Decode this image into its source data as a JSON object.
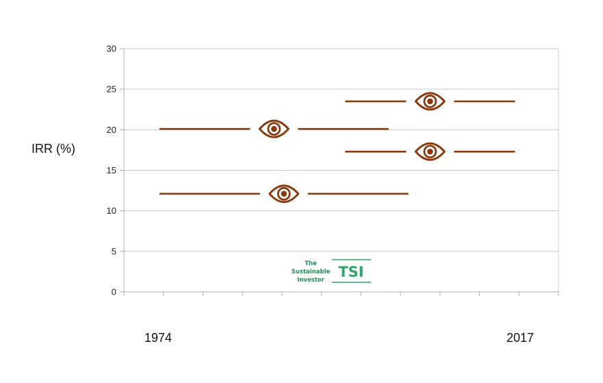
{
  "chart_data": {
    "type": "interval",
    "title": "",
    "xlabel_left": "1974",
    "xlabel_right": "2017",
    "ylabel": "IRR (%)",
    "ylim": [
      0,
      30
    ],
    "yticks": [
      "0",
      "5",
      "10",
      "15",
      "20",
      "25",
      "30"
    ],
    "x_category_count": 11,
    "grid": true,
    "intervals": [
      {
        "y": 20.1,
        "x_start": 0.9,
        "x_end": 6.7
      },
      {
        "y": 12.1,
        "x_start": 0.9,
        "x_end": 7.2
      },
      {
        "y": 23.5,
        "x_start": 5.6,
        "x_end": 9.9
      },
      {
        "y": 17.3,
        "x_start": 5.6,
        "x_end": 9.9
      }
    ],
    "marker": "eye-icon",
    "series_color": "#8b3a0f"
  },
  "logo": {
    "line1": "The",
    "line2": "Sustainable",
    "line3": "Investor",
    "mark": "TSI",
    "color": "#2ea56a"
  }
}
